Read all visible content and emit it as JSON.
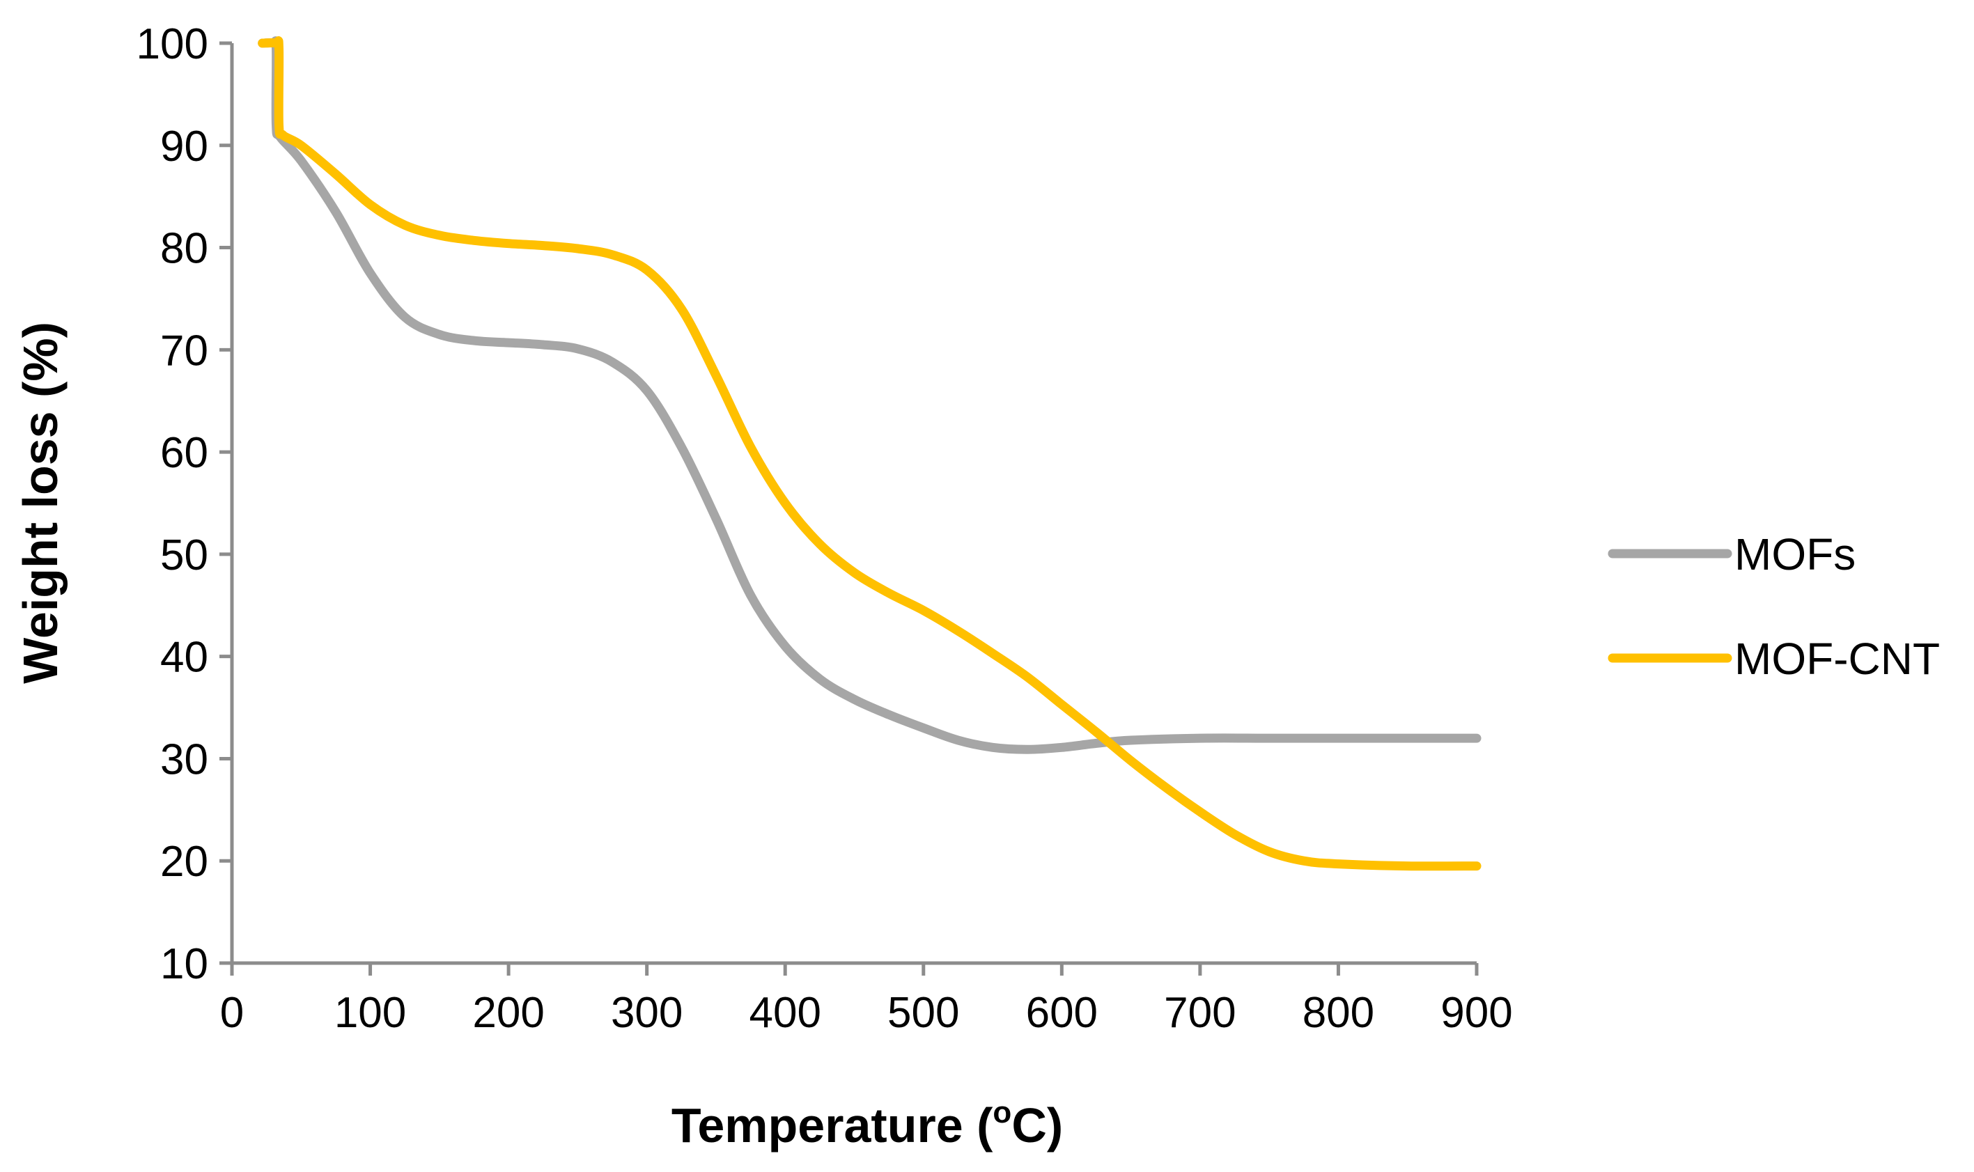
{
  "chart_data": {
    "type": "line",
    "title": "",
    "xlabel": "Temperature  (",
    "xlabel_sup": "o",
    "xlabel_unit": "C)",
    "ylabel": "Weight loss (%)",
    "xlim": [
      0,
      900
    ],
    "ylim": [
      10,
      100
    ],
    "xticks": [
      0,
      100,
      200,
      300,
      400,
      500,
      600,
      700,
      800,
      900
    ],
    "yticks": [
      10,
      20,
      30,
      40,
      50,
      60,
      70,
      80,
      90,
      100
    ],
    "grid": false,
    "legend_position": "right",
    "series": [
      {
        "name": "MOFs",
        "color": "#a6a6a6",
        "x": [
          22,
          30,
          32,
          32,
          35,
          50,
          75,
          100,
          125,
          150,
          175,
          200,
          225,
          250,
          275,
          300,
          325,
          350,
          375,
          400,
          425,
          450,
          475,
          500,
          525,
          550,
          575,
          600,
          625,
          650,
          700,
          750,
          800,
          850,
          900
        ],
        "y": [
          100,
          100,
          99.5,
          92,
          90.8,
          88.5,
          83.5,
          77.5,
          73.2,
          71.5,
          70.9,
          70.7,
          70.5,
          70.1,
          68.8,
          66,
          60.5,
          53.5,
          46,
          41,
          37.8,
          35.8,
          34.3,
          33,
          31.8,
          31.1,
          30.9,
          31.1,
          31.5,
          31.8,
          32,
          32,
          32,
          32,
          32
        ]
      },
      {
        "name": "MOF-CNT",
        "color": "#ffc000",
        "x": [
          22,
          32,
          34,
          34,
          37,
          50,
          75,
          100,
          125,
          150,
          175,
          200,
          225,
          250,
          275,
          300,
          325,
          350,
          375,
          400,
          425,
          450,
          475,
          500,
          525,
          550,
          575,
          600,
          625,
          650,
          675,
          700,
          725,
          750,
          775,
          800,
          850,
          900
        ],
        "y": [
          100,
          100,
          99.5,
          92,
          91,
          90,
          87.2,
          84.2,
          82.2,
          81.2,
          80.7,
          80.4,
          80.2,
          79.9,
          79.3,
          77.8,
          74,
          67.5,
          60.5,
          55,
          51,
          48.2,
          46.2,
          44.5,
          42.5,
          40.3,
          38,
          35.3,
          32.6,
          29.8,
          27.2,
          24.8,
          22.6,
          20.9,
          20,
          19.7,
          19.5,
          19.5
        ]
      }
    ]
  }
}
